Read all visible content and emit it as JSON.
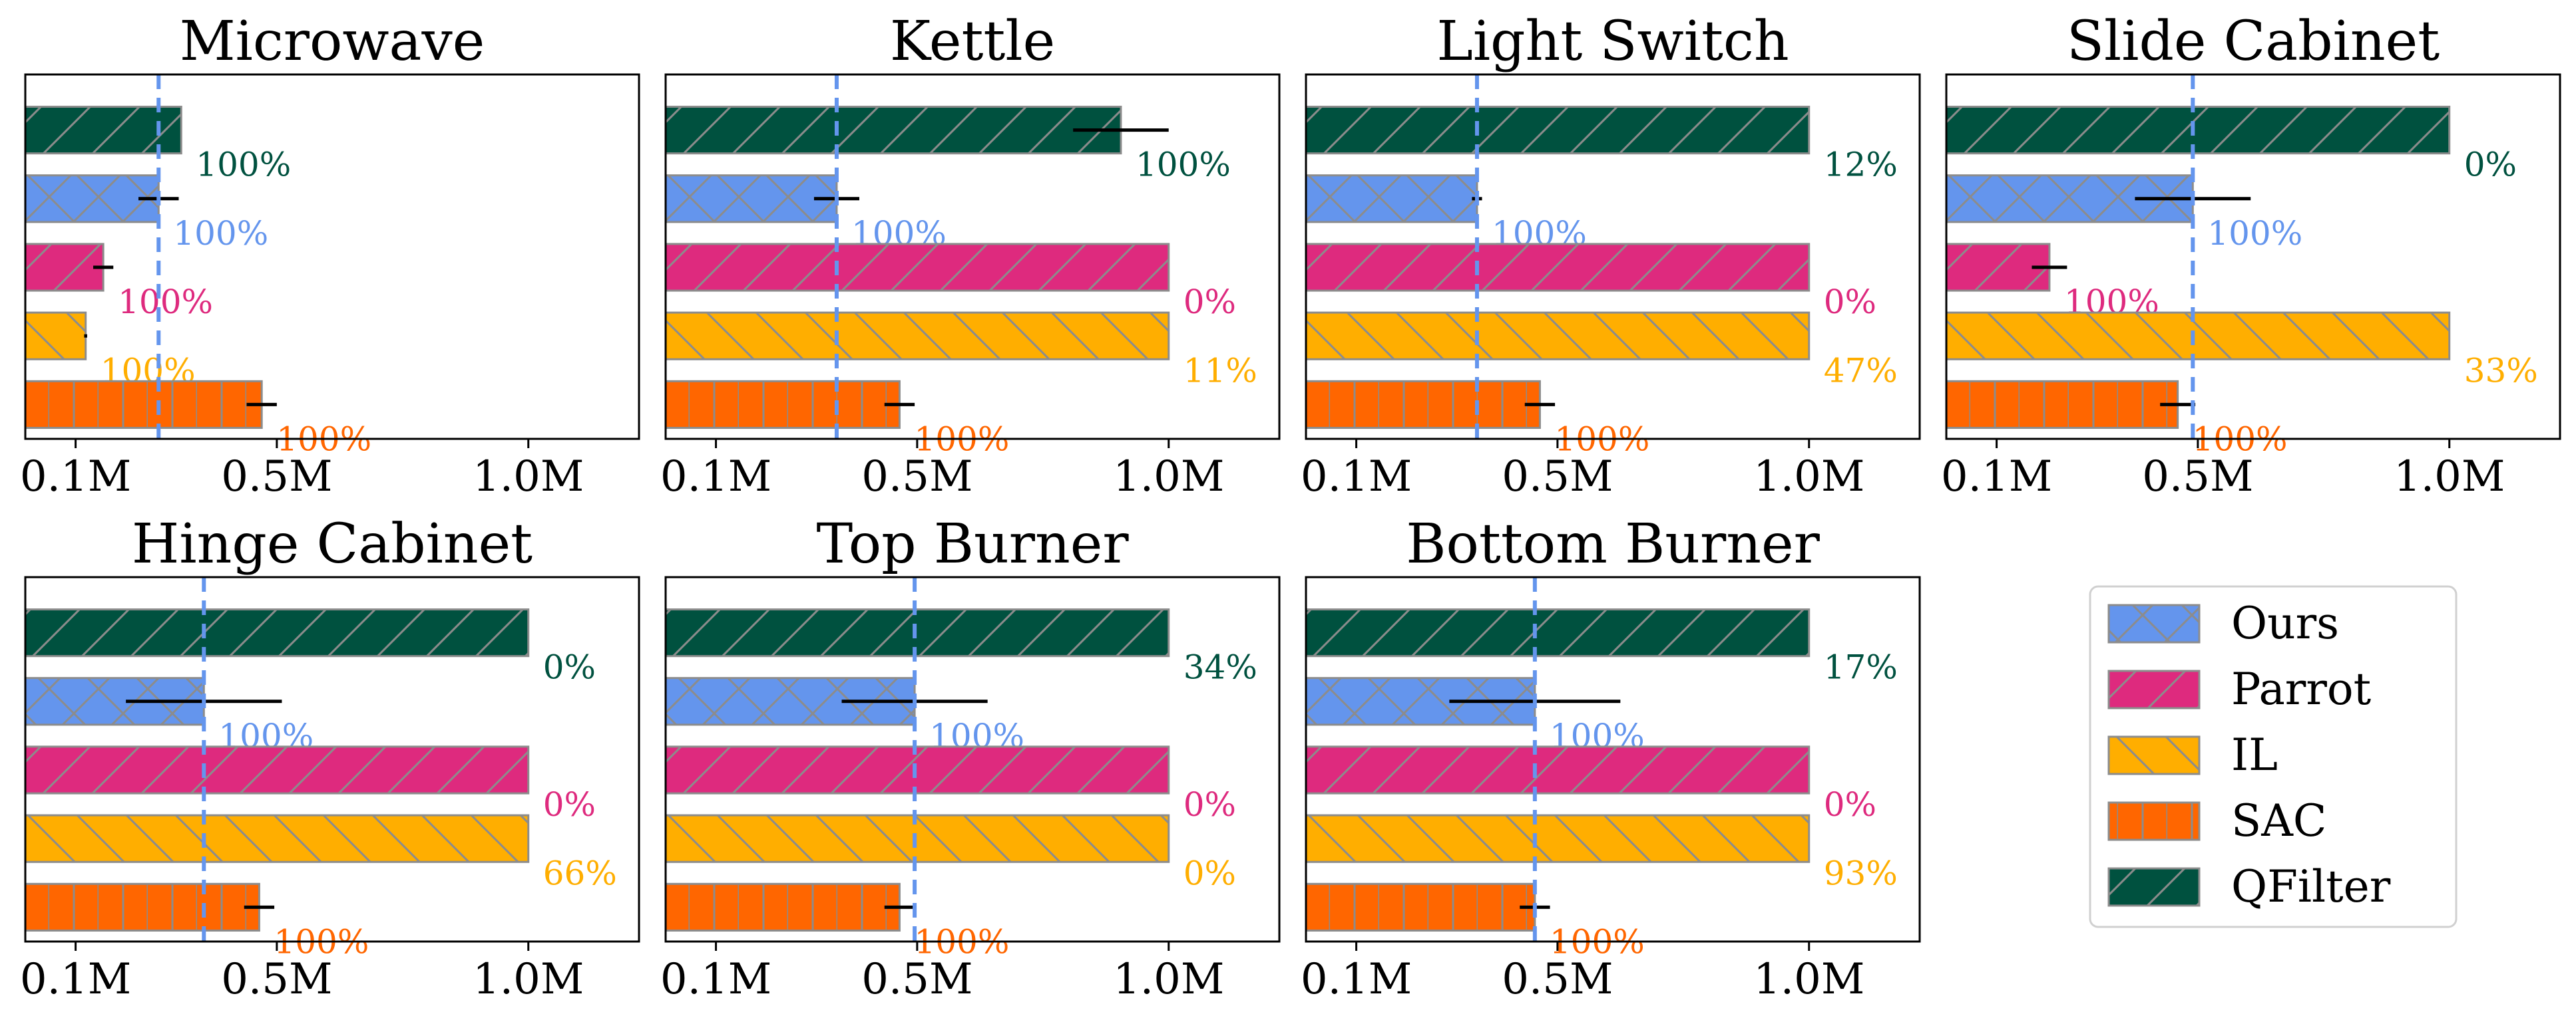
{
  "colors": {
    "Ours": "#6495ED",
    "Parrot": "#DE2A7E",
    "IL": "#FFAE00",
    "SAC": "#FF6600",
    "QFilter": "#00513F",
    "hatch": "#8c8c8c",
    "frame": "#000000",
    "vline": "#6495ED"
  },
  "hatches": {
    "QFilter": "slash",
    "Ours": "cross",
    "Parrot": "slash",
    "IL": "backslash",
    "SAC": "grid"
  },
  "legend": {
    "placement": "bottom-right",
    "entries": [
      {
        "name": "Ours"
      },
      {
        "name": "Parrot"
      },
      {
        "name": "IL"
      },
      {
        "name": "SAC"
      },
      {
        "name": "QFilter"
      }
    ]
  },
  "chart_data": [
    {
      "type": "bar",
      "orientation": "horizontal",
      "title": "Microwave",
      "xlim": [
        0,
        1.22
      ],
      "xticks": [
        0.1,
        0.5,
        1.0
      ],
      "xtick_labels": [
        "0.1M",
        "0.5M",
        "1.0M"
      ],
      "reference_line": 0.265,
      "series": [
        {
          "name": "QFilter",
          "value": 0.31,
          "err": 0,
          "label": "100%"
        },
        {
          "name": "Ours",
          "value": 0.265,
          "err": 0.04,
          "label": "100%"
        },
        {
          "name": "Parrot",
          "value": 0.155,
          "err": 0.02,
          "label": "100%"
        },
        {
          "name": "IL",
          "value": 0.12,
          "err": 0.003,
          "label": "100%"
        },
        {
          "name": "SAC",
          "value": 0.47,
          "err": 0.03,
          "label": "100%"
        }
      ]
    },
    {
      "type": "bar",
      "orientation": "horizontal",
      "title": "Kettle",
      "xlim": [
        0,
        1.22
      ],
      "xticks": [
        0.1,
        0.5,
        1.0
      ],
      "xtick_labels": [
        "0.1M",
        "0.5M",
        "1.0M"
      ],
      "reference_line": 0.34,
      "series": [
        {
          "name": "QFilter",
          "value": 0.905,
          "err": 0.095,
          "label": "100%"
        },
        {
          "name": "Ours",
          "value": 0.34,
          "err": 0.045,
          "label": "100%"
        },
        {
          "name": "Parrot",
          "value": 1.0,
          "err": 0,
          "label": "0%"
        },
        {
          "name": "IL",
          "value": 1.0,
          "err": 0,
          "label": "11%"
        },
        {
          "name": "SAC",
          "value": 0.465,
          "err": 0.03,
          "label": "100%"
        }
      ]
    },
    {
      "type": "bar",
      "orientation": "horizontal",
      "title": "Light Switch",
      "xlim": [
        0,
        1.22
      ],
      "xticks": [
        0.1,
        0.5,
        1.0
      ],
      "xtick_labels": [
        "0.1M",
        "0.5M",
        "1.0M"
      ],
      "reference_line": 0.34,
      "series": [
        {
          "name": "QFilter",
          "value": 1.0,
          "err": 0,
          "label": "12%"
        },
        {
          "name": "Ours",
          "value": 0.34,
          "err": 0.01,
          "label": "100%"
        },
        {
          "name": "Parrot",
          "value": 1.0,
          "err": 0,
          "label": "0%"
        },
        {
          "name": "IL",
          "value": 1.0,
          "err": 0,
          "label": "47%"
        },
        {
          "name": "SAC",
          "value": 0.465,
          "err": 0.03,
          "label": "100%"
        }
      ]
    },
    {
      "type": "bar",
      "orientation": "horizontal",
      "title": "Slide Cabinet",
      "xlim": [
        0,
        1.22
      ],
      "xticks": [
        0.1,
        0.5,
        1.0
      ],
      "xtick_labels": [
        "0.1M",
        "0.5M",
        "1.0M"
      ],
      "reference_line": 0.49,
      "series": [
        {
          "name": "QFilter",
          "value": 1.0,
          "err": 0,
          "label": "0%"
        },
        {
          "name": "Ours",
          "value": 0.49,
          "err": 0.115,
          "label": "100%"
        },
        {
          "name": "Parrot",
          "value": 0.205,
          "err": 0.035,
          "label": "100%"
        },
        {
          "name": "IL",
          "value": 1.0,
          "err": 0,
          "label": "33%"
        },
        {
          "name": "SAC",
          "value": 0.46,
          "err": 0.035,
          "label": "100%"
        }
      ]
    },
    {
      "type": "bar",
      "orientation": "horizontal",
      "title": "Hinge Cabinet",
      "xlim": [
        0,
        1.22
      ],
      "xticks": [
        0.1,
        0.5,
        1.0
      ],
      "xtick_labels": [
        "0.1M",
        "0.5M",
        "1.0M"
      ],
      "reference_line": 0.355,
      "series": [
        {
          "name": "QFilter",
          "value": 1.0,
          "err": 0,
          "label": "0%"
        },
        {
          "name": "Ours",
          "value": 0.355,
          "err": 0.155,
          "label": "100%"
        },
        {
          "name": "Parrot",
          "value": 1.0,
          "err": 0,
          "label": "0%"
        },
        {
          "name": "IL",
          "value": 1.0,
          "err": 0,
          "label": "66%"
        },
        {
          "name": "SAC",
          "value": 0.465,
          "err": 0.03,
          "label": "100%"
        }
      ]
    },
    {
      "type": "bar",
      "orientation": "horizontal",
      "title": "Top Burner",
      "xlim": [
        0,
        1.22
      ],
      "xticks": [
        0.1,
        0.5,
        1.0
      ],
      "xtick_labels": [
        "0.1M",
        "0.5M",
        "1.0M"
      ],
      "reference_line": 0.495,
      "series": [
        {
          "name": "QFilter",
          "value": 1.0,
          "err": 0,
          "label": "34%"
        },
        {
          "name": "Ours",
          "value": 0.495,
          "err": 0.145,
          "label": "100%"
        },
        {
          "name": "Parrot",
          "value": 1.0,
          "err": 0,
          "label": "0%"
        },
        {
          "name": "IL",
          "value": 1.0,
          "err": 0,
          "label": "0%"
        },
        {
          "name": "SAC",
          "value": 0.465,
          "err": 0.03,
          "label": "100%"
        }
      ]
    },
    {
      "type": "bar",
      "orientation": "horizontal",
      "title": "Bottom Burner",
      "xlim": [
        0,
        1.22
      ],
      "xticks": [
        0.1,
        0.5,
        1.0
      ],
      "xtick_labels": [
        "0.1M",
        "0.5M",
        "1.0M"
      ],
      "reference_line": 0.455,
      "series": [
        {
          "name": "QFilter",
          "value": 1.0,
          "err": 0,
          "label": "17%"
        },
        {
          "name": "Ours",
          "value": 0.455,
          "err": 0.17,
          "label": "100%"
        },
        {
          "name": "Parrot",
          "value": 1.0,
          "err": 0,
          "label": "0%"
        },
        {
          "name": "IL",
          "value": 1.0,
          "err": 0,
          "label": "93%"
        },
        {
          "name": "SAC",
          "value": 0.455,
          "err": 0.03,
          "label": "100%"
        }
      ]
    }
  ]
}
